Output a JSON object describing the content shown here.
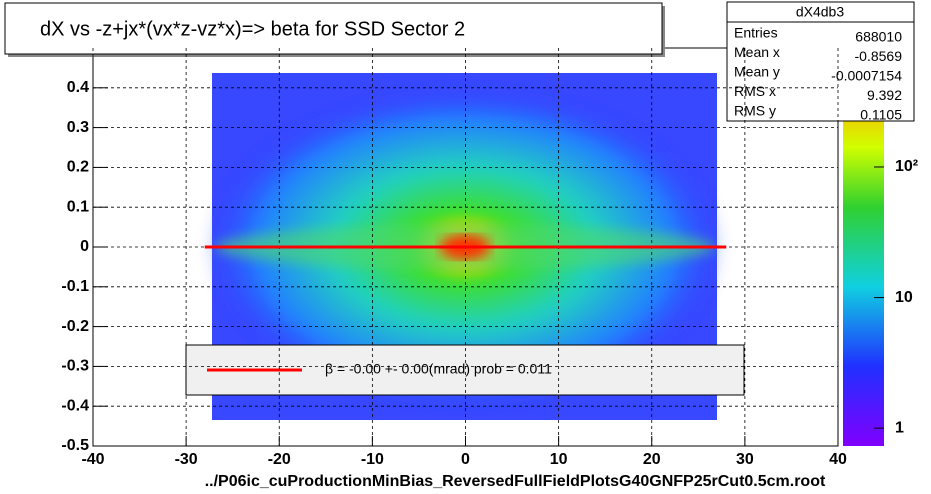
{
  "chart_data": {
    "type": "histogram2d",
    "title": "dX vs  -z+jx*(vx*z-vz*x)=> beta  for SSD Sector 2",
    "x_label": "../P06ic_cuProductionMinBias_ReversedFullFieldPlotsG40GNFP25rCut0.5cm.root",
    "xlim": [
      -40,
      40
    ],
    "xticks": [
      -40,
      -30,
      -20,
      -10,
      0,
      10,
      20,
      30,
      40
    ],
    "ylim": [
      -0.5,
      0.5
    ],
    "yticks": [
      -0.5,
      -0.4,
      -0.3,
      -0.2,
      -0.1,
      0,
      0.1,
      0.2,
      0.3,
      0.4
    ],
    "zlim": [
      0.73,
      815
    ],
    "log_z": true,
    "zticks": [
      1,
      10,
      {
        "value": 100,
        "label": "10²"
      }
    ],
    "grid": true,
    "stats": {
      "name": "dX4db3",
      "rows": [
        [
          "Entries",
          688010
        ],
        [
          "Mean x",
          -0.8569
        ],
        [
          "Mean y",
          -0.0007154
        ],
        [
          "RMS x",
          9.392
        ],
        [
          "RMS y",
          0.1105
        ]
      ]
    },
    "fit": {
      "name": "β =     -0.00 +-     0.00(mrad) prob = 0.011",
      "color": "#ff0000",
      "x": [
        -28,
        28
      ],
      "values": [
        0,
        0
      ]
    }
  }
}
